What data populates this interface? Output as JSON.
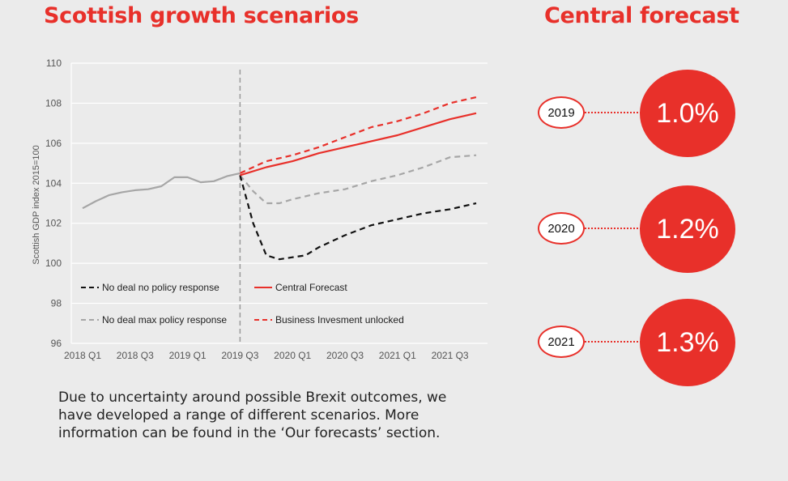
{
  "left_title": "Scottish growth scenarios",
  "right_title": "Central forecast",
  "description": "Due to uncertainty around possible Brexit outcomes, we have developed a range of different scenarios. More information can be found in the ‘Our forecasts’ section.",
  "colors": {
    "accent": "#e8302a",
    "grey": "#a6a6a6",
    "black": "#111111",
    "history": "#a6a6a6"
  },
  "forecasts": [
    {
      "year": "2019",
      "value": "1.0%"
    },
    {
      "year": "2020",
      "value": "1.2%"
    },
    {
      "year": "2021",
      "value": "1.3%"
    }
  ],
  "chart_data": {
    "type": "line",
    "ylabel": "Scottish GDP index 2015=100",
    "ylim": [
      96,
      110
    ],
    "yticks": [
      96,
      98,
      100,
      102,
      104,
      106,
      108,
      110
    ],
    "xlim": [
      0,
      15
    ],
    "xtick_labels": [
      "2018 Q1",
      "2018 Q3",
      "2019 Q1",
      "2019 Q3",
      "2020 Q1",
      "2020 Q3",
      "2021 Q1",
      "2021 Q3"
    ],
    "xtick_positions": [
      0,
      2,
      4,
      6,
      8,
      10,
      12,
      14
    ],
    "divider_at": "2019 Q3",
    "history": {
      "x": [
        0,
        0.5,
        1,
        1.5,
        2,
        2.5,
        3,
        3.5,
        4,
        4.5,
        5,
        5.5,
        6
      ],
      "values": [
        102.75,
        103.1,
        103.4,
        103.55,
        103.65,
        103.7,
        103.85,
        104.3,
        104.3,
        104.05,
        104.1,
        104.35,
        104.5
      ]
    },
    "series": [
      {
        "name": "No deal no policy response",
        "style": "dashed",
        "color": "#111111",
        "x": [
          6,
          6.5,
          7,
          7.5,
          8,
          8.5,
          9,
          10,
          11,
          12,
          13,
          14,
          15
        ],
        "values": [
          104.4,
          102.0,
          100.4,
          100.2,
          100.3,
          100.4,
          100.8,
          101.4,
          101.9,
          102.2,
          102.5,
          102.7,
          103.0
        ]
      },
      {
        "name": "No deal max policy response",
        "style": "dashed",
        "color": "#a6a6a6",
        "x": [
          6,
          6.5,
          7,
          7.5,
          8,
          9,
          10,
          11,
          12,
          13,
          14,
          15
        ],
        "values": [
          104.4,
          103.6,
          103.0,
          103.0,
          103.2,
          103.5,
          103.7,
          104.1,
          104.4,
          104.8,
          105.3,
          105.4
        ]
      },
      {
        "name": "Central Forecast",
        "style": "solid",
        "color": "#e8302a",
        "x": [
          6,
          7,
          8,
          9,
          10,
          11,
          12,
          13,
          14,
          15
        ],
        "values": [
          104.4,
          104.8,
          105.1,
          105.5,
          105.8,
          106.1,
          106.4,
          106.8,
          107.2,
          107.5
        ]
      },
      {
        "name": "Business Invesment unlocked",
        "style": "dashed",
        "color": "#e8302a",
        "x": [
          6,
          7,
          8,
          9,
          10,
          11,
          12,
          13,
          14,
          15
        ],
        "values": [
          104.5,
          105.1,
          105.4,
          105.8,
          106.3,
          106.8,
          107.1,
          107.5,
          108.0,
          108.3
        ]
      }
    ],
    "legend_position": "bottom-left, inside plot"
  }
}
